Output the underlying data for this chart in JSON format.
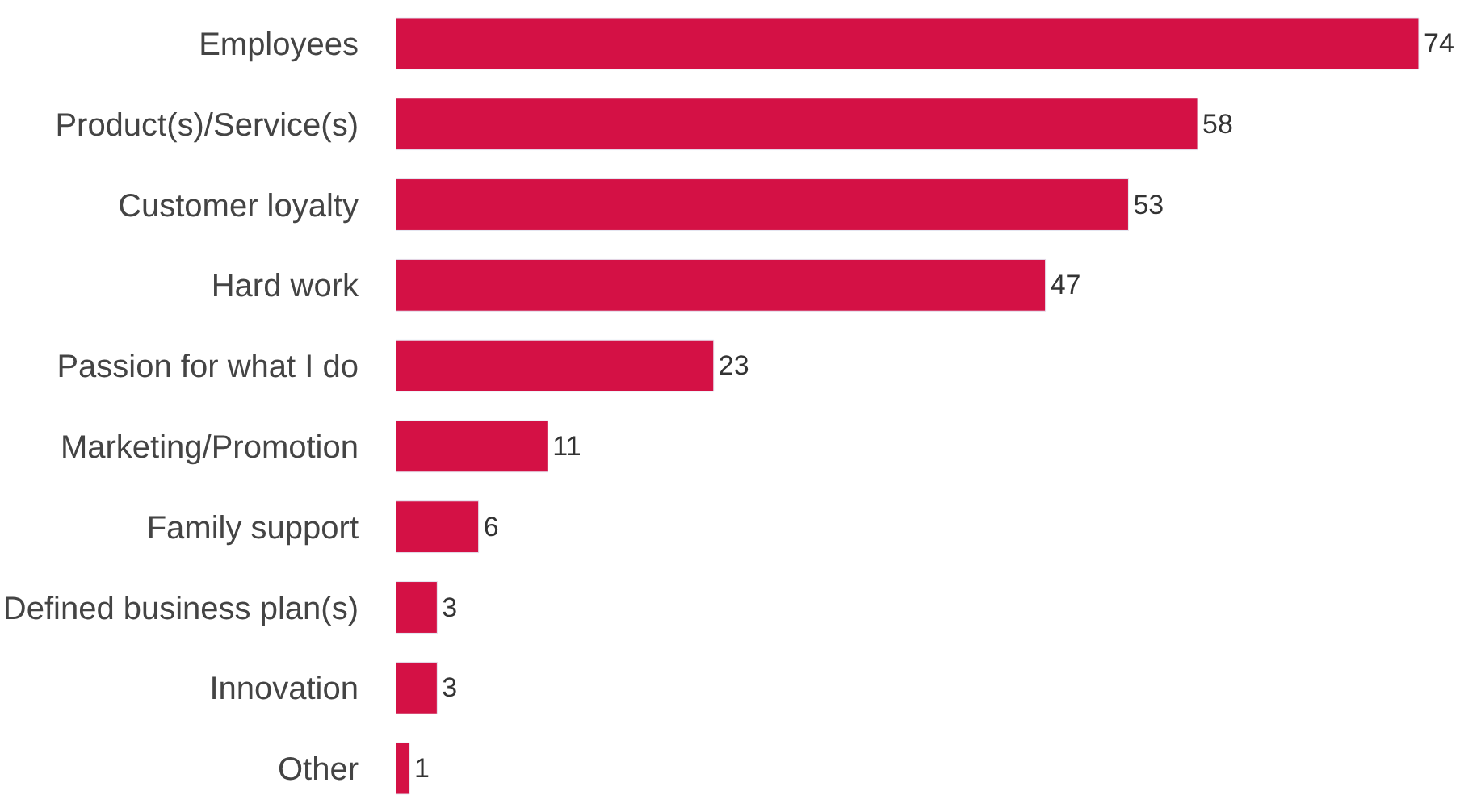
{
  "chart_data": {
    "type": "bar",
    "orientation": "horizontal",
    "categories": [
      "Employees",
      "Product(s)/Service(s)",
      "Customer loyalty",
      "Hard work",
      "Passion for what I do",
      "Marketing/Promotion",
      "Family support",
      "Defined business plan(s)",
      "Innovation",
      "Other"
    ],
    "values": [
      74,
      58,
      53,
      47,
      23,
      11,
      6,
      3,
      3,
      1
    ],
    "color": "#d41145",
    "data_labels": true
  }
}
